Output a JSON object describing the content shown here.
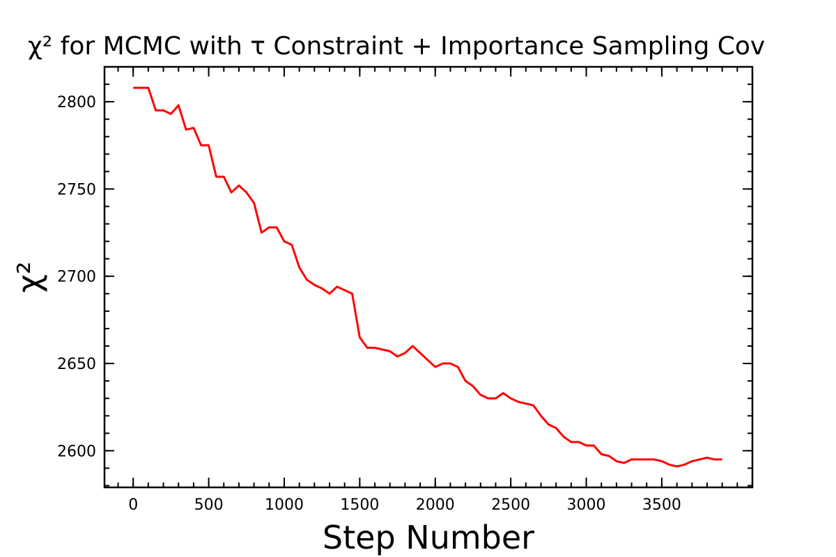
{
  "chart_data": {
    "type": "line",
    "title": "χ² for MCMC with τ Constraint + Importance Sampling Cov",
    "x_label": "Step Number",
    "y_label": "χ²",
    "x": [
      0,
      50,
      100,
      150,
      200,
      250,
      300,
      350,
      400,
      450,
      500,
      550,
      600,
      650,
      700,
      750,
      800,
      850,
      900,
      950,
      1000,
      1050,
      1100,
      1150,
      1200,
      1250,
      1300,
      1350,
      1400,
      1450,
      1500,
      1550,
      1600,
      1650,
      1700,
      1750,
      1800,
      1850,
      1900,
      1950,
      2000,
      2050,
      2100,
      2150,
      2200,
      2250,
      2300,
      2350,
      2400,
      2450,
      2500,
      2550,
      2600,
      2650,
      2700,
      2750,
      2800,
      2850,
      2900,
      2950,
      3000,
      3050,
      3100,
      3150,
      3200,
      3250,
      3300,
      3350,
      3400,
      3450,
      3500,
      3550,
      3600,
      3650,
      3700,
      3750,
      3800,
      3850,
      3900
    ],
    "series": [
      {
        "color": "#ff0000",
        "values": [
          2808,
          2808,
          2808,
          2795,
          2795,
          2793,
          2798,
          2784,
          2785,
          2775,
          2775,
          2757,
          2757,
          2748,
          2752,
          2748,
          2742,
          2725,
          2728,
          2728,
          2720,
          2718,
          2705,
          2698,
          2695,
          2693,
          2690,
          2694,
          2692,
          2690,
          2665,
          2659,
          2659,
          2658,
          2657,
          2654,
          2656,
          2660,
          2656,
          2652,
          2648,
          2650,
          2650,
          2648,
          2640,
          2637,
          2632,
          2630,
          2630,
          2633,
          2630,
          2628,
          2627,
          2626,
          2620,
          2615,
          2613,
          2608,
          2605,
          2605,
          2603,
          2603,
          2598,
          2597,
          2594,
          2593,
          2595,
          2595,
          2595,
          2595,
          2594,
          2592,
          2591,
          2592,
          2594,
          2595,
          2596,
          2595,
          2595
        ]
      }
    ],
    "xlim": [
      -190,
      4100
    ],
    "ylim": [
      2579,
      2820
    ],
    "xticks": [
      0,
      500,
      1000,
      1500,
      2000,
      2500,
      3000,
      3500
    ],
    "yticks": [
      2600,
      2650,
      2700,
      2750,
      2800
    ],
    "grid": false
  }
}
